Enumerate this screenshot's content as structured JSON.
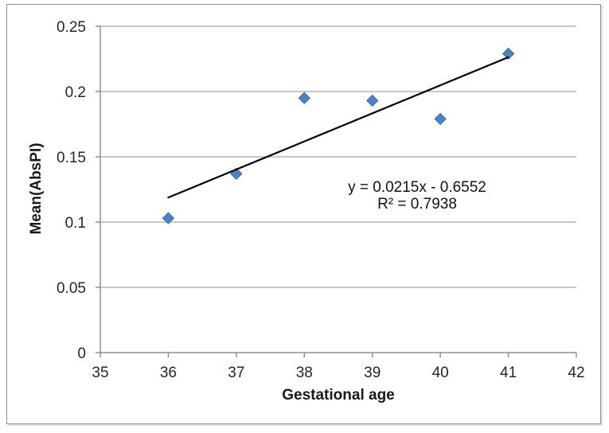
{
  "window": {
    "background": "#ffffff",
    "frame_border": "#8f8f8f"
  },
  "chart_data": {
    "type": "scatter",
    "title": "",
    "xlabel": "Gestational age",
    "ylabel": "Mean(AbsPI)",
    "x": [
      36,
      37,
      38,
      39,
      40,
      41
    ],
    "y": [
      0.103,
      0.137,
      0.195,
      0.193,
      0.179,
      0.229
    ],
    "xlim": [
      35,
      42
    ],
    "ylim": [
      0,
      0.25
    ],
    "x_ticks": [
      35,
      36,
      37,
      38,
      39,
      40,
      41,
      42
    ],
    "x_tick_labels": [
      "35",
      "36",
      "37",
      "38",
      "39",
      "40",
      "41",
      "42"
    ],
    "y_ticks": [
      0,
      0.05,
      0.1,
      0.15,
      0.2,
      0.25
    ],
    "y_tick_labels": [
      "0",
      "0.05",
      "0.1",
      "0.15",
      "0.2",
      "0.25"
    ],
    "grid": "horizontal-only",
    "legend": "none",
    "marker": {
      "shape": "diamond",
      "fill": "#4f81bd",
      "stroke": "#3d6da8",
      "size": 14
    },
    "trendline": {
      "type": "linear",
      "slope": 0.0215,
      "intercept": -0.6552,
      "x_start": 36,
      "x_end": 41,
      "color": "#000000"
    },
    "annotation": {
      "equation": "y = 0.0215x - 0.6552",
      "r_squared": "R² = 0.7938"
    },
    "colors": {
      "gridline": "#a6a6a6",
      "axis": "#8f8f8f",
      "tick_label": "#262626",
      "axis_title": "#1a1a1a"
    }
  }
}
